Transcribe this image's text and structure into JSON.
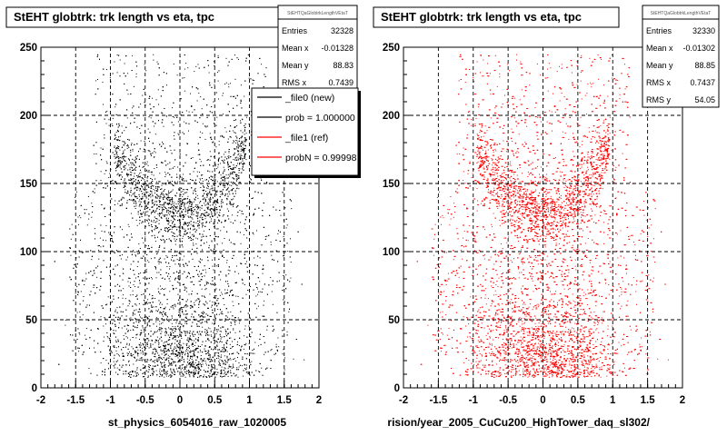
{
  "chart_data": [
    {
      "type": "scatter",
      "title": "StEHT globtrk: trk length vs eta, tpc",
      "xlabel": "st_physics_6054016_raw_1020005",
      "ylabel": "",
      "xlim": [
        -2,
        2
      ],
      "ylim": [
        0,
        250
      ],
      "x_ticks": [
        "-2",
        "-1.5",
        "-1",
        "-0.5",
        "0",
        "0.5",
        "1",
        "1.5",
        "2"
      ],
      "y_ticks": [
        "0",
        "50",
        "100",
        "150",
        "200",
        "250"
      ],
      "grid": true,
      "color": "#000000",
      "stats": {
        "name": "StEHTQaGlobtrkLengthVEtaT",
        "rows": [
          {
            "label": "Entries",
            "value": "32328"
          },
          {
            "label": "Mean x",
            "value": "-0.01328"
          },
          {
            "label": "Mean y",
            "value": "88.83"
          },
          {
            "label": "RMS x",
            "value": "0.7439"
          }
        ]
      },
      "legend": [
        {
          "label": "_file0 (new)",
          "color": "#000000"
        },
        {
          "label": "prob = 1.000000",
          "color": "#000000"
        },
        {
          "label": "_file1 (ref)",
          "color": "#ff0000"
        },
        {
          "label": "probN = 0.99998",
          "color": "#ff0000"
        }
      ],
      "legend_position": "top-right"
    },
    {
      "type": "scatter",
      "title": "StEHT globtrk: trk length vs eta, tpc",
      "xlabel": "rision/year_2005_CuCu200_HighTower_daq_sl302/",
      "ylabel": "",
      "xlim": [
        -2,
        2
      ],
      "ylim": [
        0,
        250
      ],
      "x_ticks": [
        "-2",
        "-1.5",
        "-1",
        "-0.5",
        "0",
        "0.5",
        "1",
        "1.5",
        "2"
      ],
      "y_ticks": [
        "0",
        "50",
        "100",
        "150",
        "200",
        "250"
      ],
      "grid": true,
      "color": "#ff0000",
      "stats": {
        "name": "StEHTQaGlobtrkLengthVEtaT",
        "rows": [
          {
            "label": "Entries",
            "value": "32330"
          },
          {
            "label": "Mean x",
            "value": "-0.01302"
          },
          {
            "label": "Mean y",
            "value": "88.85"
          },
          {
            "label": "RMS x",
            "value": "0.7437"
          },
          {
            "label": "RMS y",
            "value": "54.05"
          }
        ]
      }
    }
  ]
}
